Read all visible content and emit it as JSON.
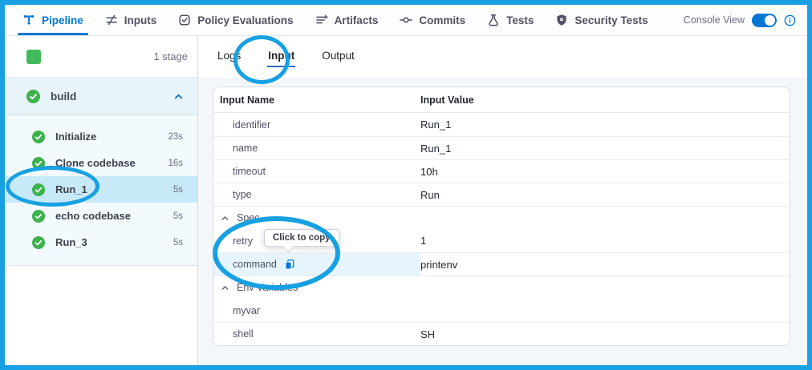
{
  "colors": {
    "accent": "#0278d5",
    "annotation": "#17a0e2",
    "success": "#3cb24c",
    "frame_border": "#18a0e3"
  },
  "header": {
    "tabs": [
      {
        "label": "Pipeline",
        "icon": "pipeline-icon",
        "active": true
      },
      {
        "label": "Inputs",
        "icon": "inputs-icon",
        "active": false
      },
      {
        "label": "Policy Evaluations",
        "icon": "policy-icon",
        "active": false
      },
      {
        "label": "Artifacts",
        "icon": "artifacts-icon",
        "active": false
      },
      {
        "label": "Commits",
        "icon": "commits-icon",
        "active": false
      },
      {
        "label": "Tests",
        "icon": "tests-icon",
        "active": false
      },
      {
        "label": "Security Tests",
        "icon": "security-icon",
        "active": false
      }
    ],
    "console_view_label": "Console View",
    "console_view_on": true
  },
  "sidebar": {
    "stage_count_label": "1 stage",
    "stage_group": {
      "label": "build",
      "status": "success",
      "expanded": true
    },
    "steps": [
      {
        "label": "Initialize",
        "duration": "23s",
        "status": "success",
        "selected": false
      },
      {
        "label": "Clone codebase",
        "duration": "16s",
        "status": "success",
        "selected": false
      },
      {
        "label": "Run_1",
        "duration": "5s",
        "status": "success",
        "selected": true
      },
      {
        "label": "echo codebase",
        "duration": "5s",
        "status": "success",
        "selected": false
      },
      {
        "label": "Run_3",
        "duration": "5s",
        "status": "success",
        "selected": false
      }
    ]
  },
  "main": {
    "tabs": [
      {
        "label": "Logs",
        "active": false
      },
      {
        "label": "Input",
        "active": true
      },
      {
        "label": "Output",
        "active": false
      }
    ],
    "table": {
      "columns": [
        "Input Name",
        "Input Value"
      ],
      "rows": [
        {
          "name": "identifier",
          "value": "Run_1",
          "kind": "row"
        },
        {
          "name": "name",
          "value": "Run_1",
          "kind": "row"
        },
        {
          "name": "timeout",
          "value": "10h",
          "kind": "row"
        },
        {
          "name": "type",
          "value": "Run",
          "kind": "row"
        },
        {
          "name": "Spec",
          "value": "",
          "kind": "section"
        },
        {
          "name": "retry",
          "value": "1",
          "kind": "row"
        },
        {
          "name": "command",
          "value": "printenv",
          "kind": "row",
          "highlighted": true,
          "copy_icon": true
        },
        {
          "name": "Env Variables",
          "value": "",
          "kind": "section"
        },
        {
          "name": "myvar",
          "value": "",
          "kind": "row"
        },
        {
          "name": "shell",
          "value": "SH",
          "kind": "row"
        }
      ]
    },
    "tooltip": {
      "label": "Click to copy"
    }
  }
}
